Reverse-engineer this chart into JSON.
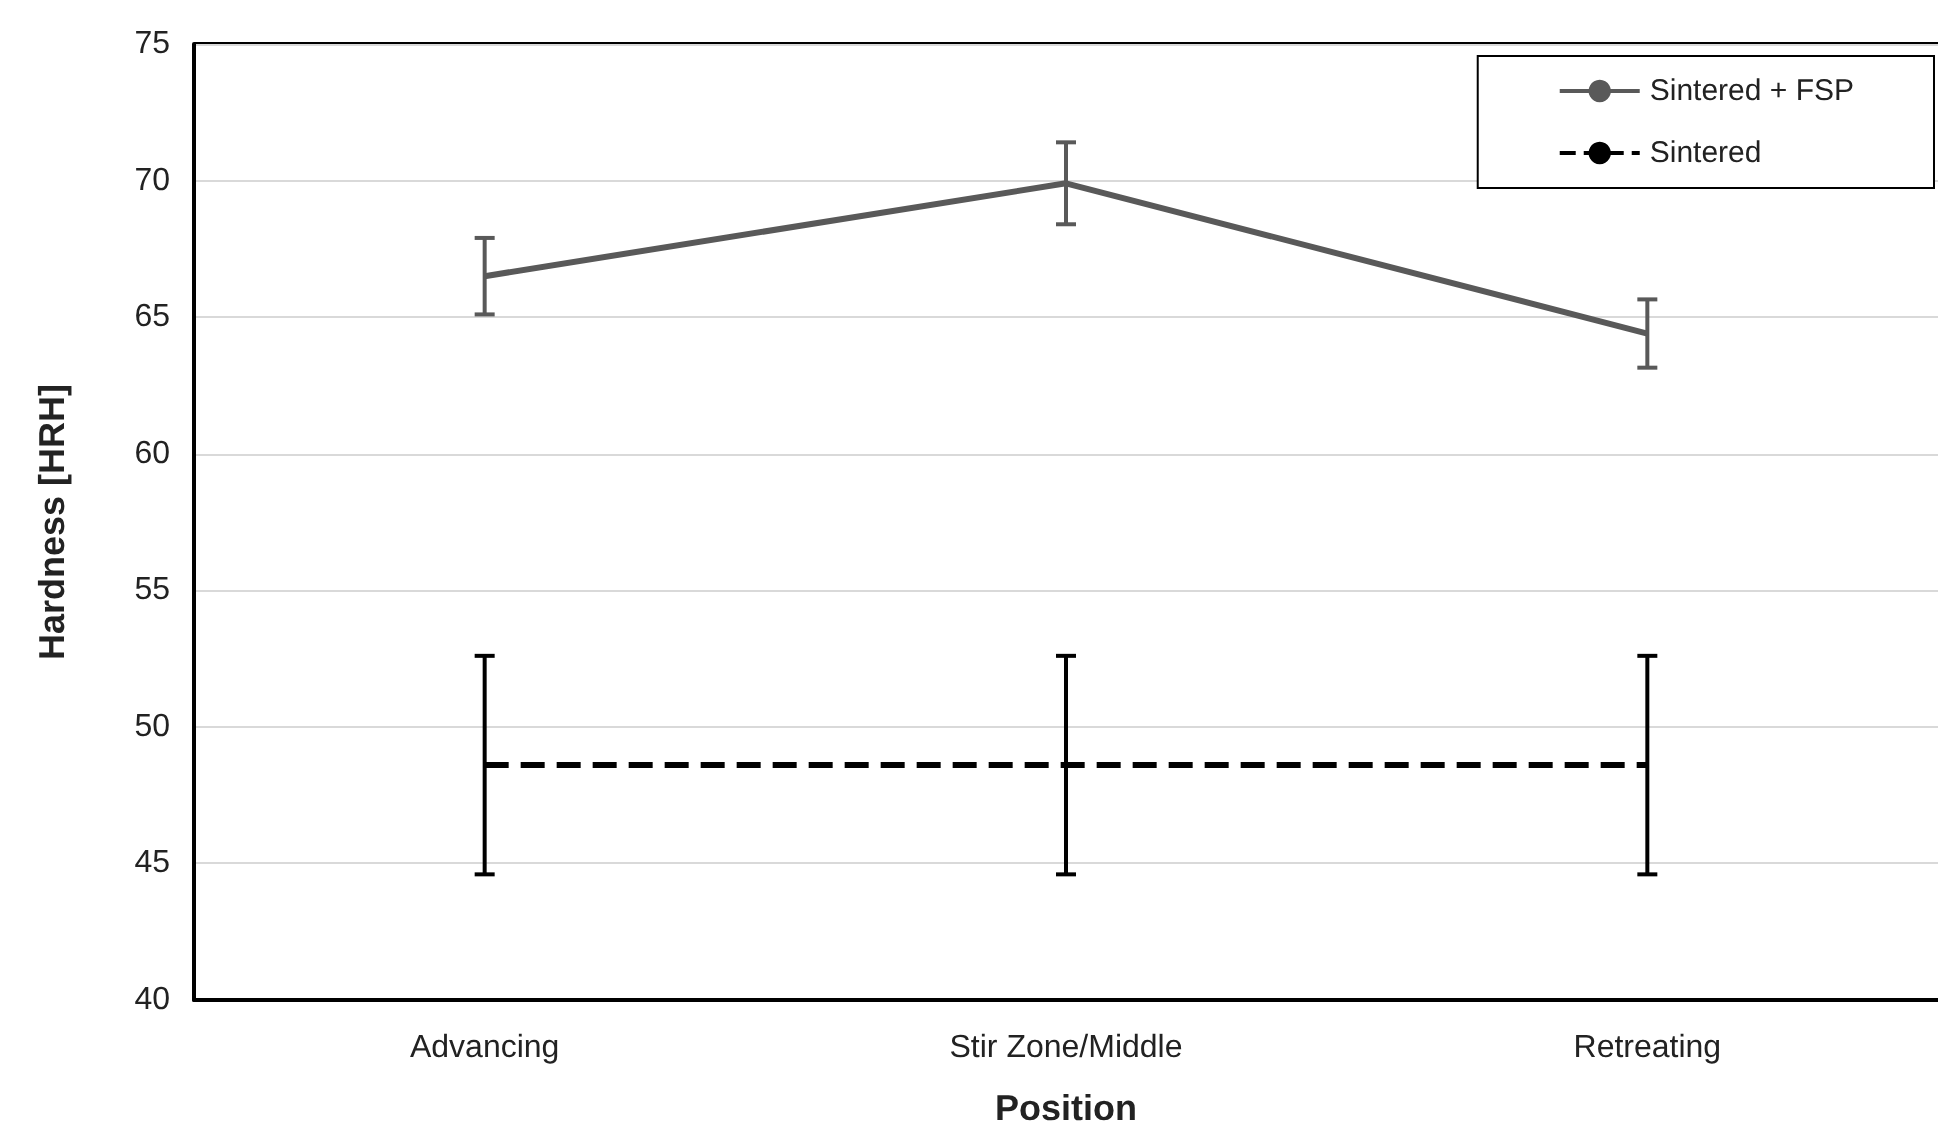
{
  "chart_data": {
    "type": "line",
    "xlabel": "Position",
    "ylabel": "Hardness [HRH]",
    "categories": [
      "Advancing",
      "Stir Zone/Middle",
      "Retreating"
    ],
    "series": [
      {
        "name": "Sintered + FSP",
        "color": "#595959",
        "values": [
          66.5,
          69.9,
          64.4
        ],
        "errors": [
          1.4,
          1.5,
          1.25
        ],
        "line_style": "solid"
      },
      {
        "name": "Sintered",
        "color": "#000000",
        "values": [
          48.6,
          48.6,
          48.6
        ],
        "errors": [
          4,
          4,
          4
        ],
        "line_style": "dashed"
      }
    ],
    "ylim": [
      40,
      75
    ],
    "yticks": [
      40,
      45,
      50,
      55,
      60,
      65,
      70,
      75
    ],
    "grid": "y",
    "legend": "top right",
    "marker": "none"
  }
}
